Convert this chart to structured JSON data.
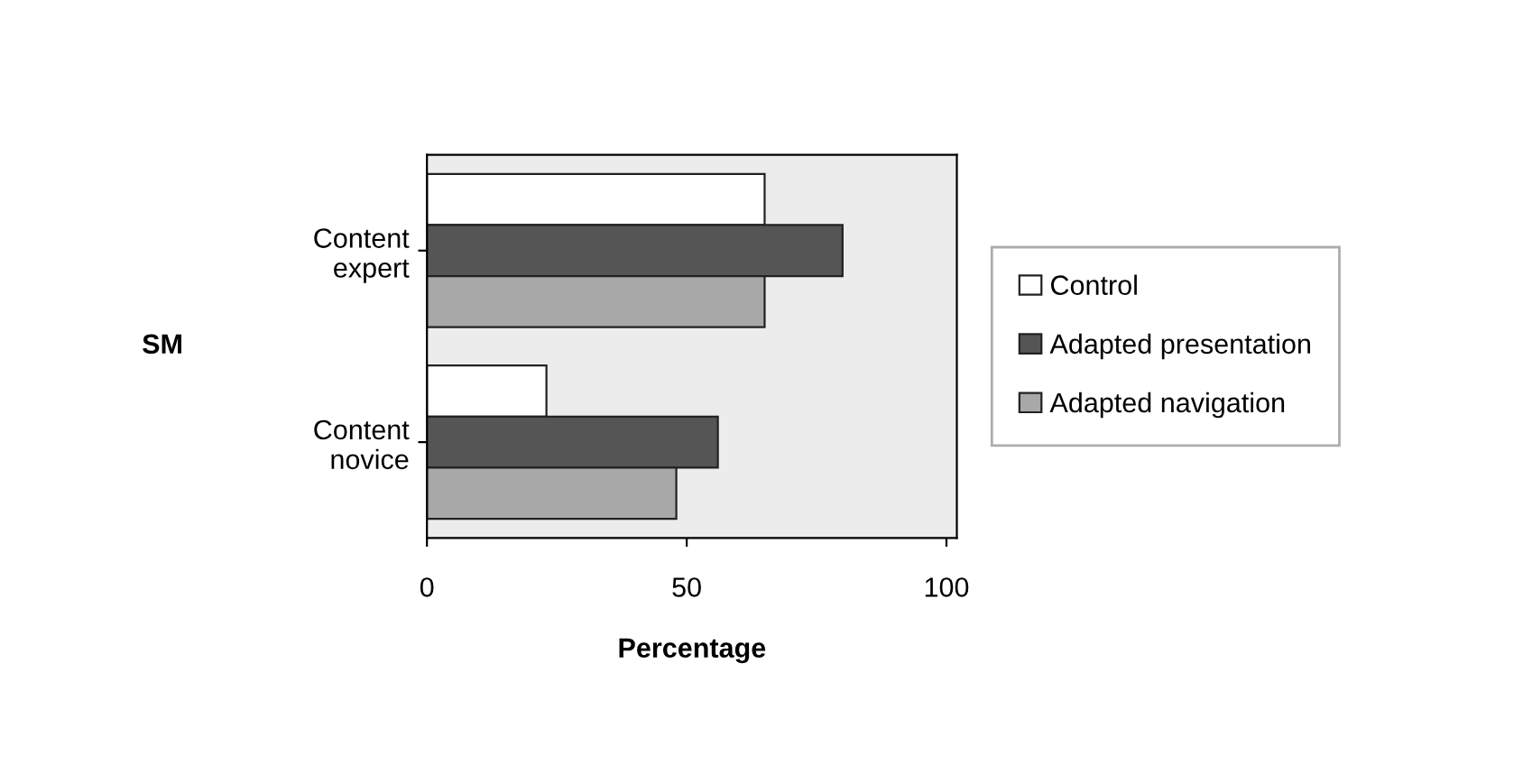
{
  "chart_data": {
    "type": "bar",
    "orientation": "horizontal",
    "categories": [
      "Content\nexpert",
      "Content\nnovice"
    ],
    "series": [
      {
        "name": "Control",
        "color": "#ffffff",
        "values": [
          65,
          23
        ]
      },
      {
        "name": "Adapted presentation",
        "color": "#555555",
        "values": [
          80,
          56
        ]
      },
      {
        "name": "Adapted navigation",
        "color": "#a8a8a8",
        "values": [
          65,
          48
        ]
      }
    ],
    "xlim": [
      0,
      102
    ],
    "xticks": [
      0,
      50,
      100
    ],
    "xlabel": "Percentage",
    "ylabel": "SM",
    "grid": false,
    "legend": "right"
  }
}
